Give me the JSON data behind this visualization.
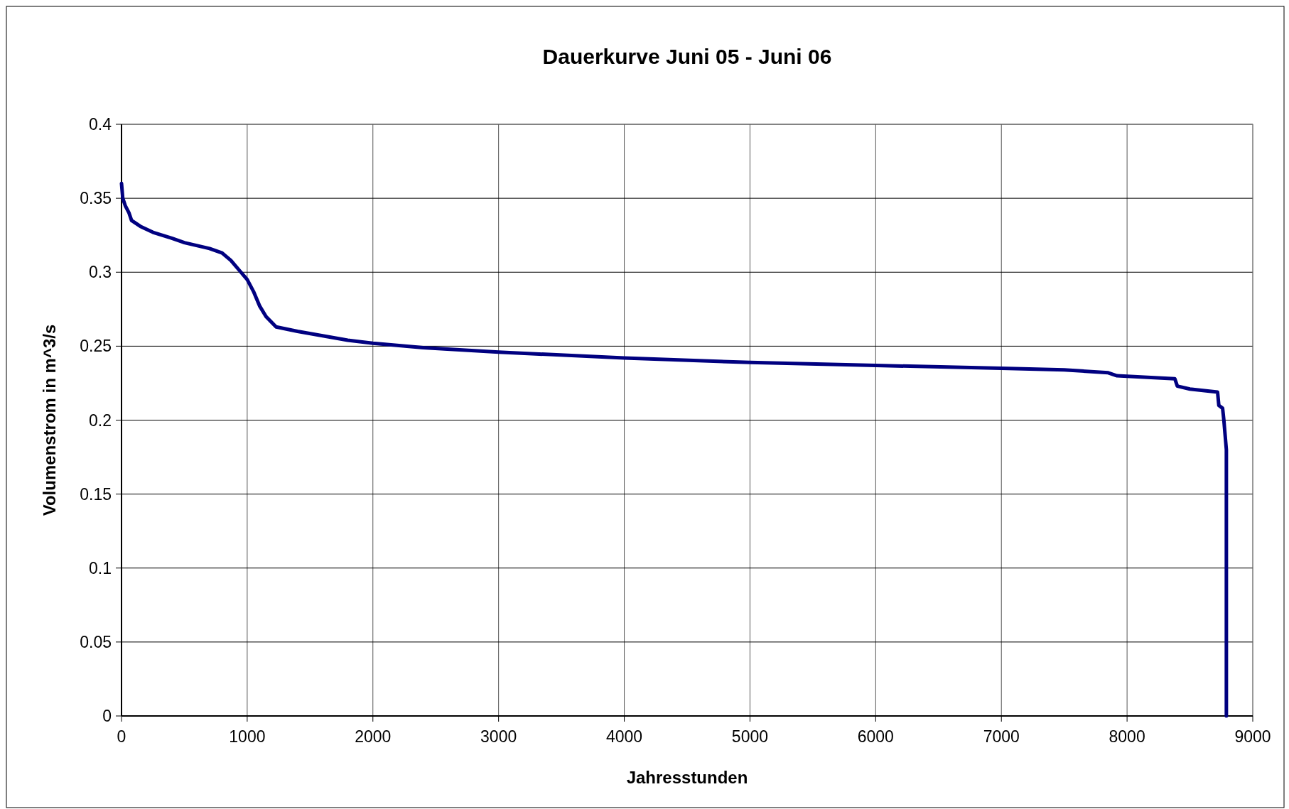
{
  "chart_data": {
    "type": "line",
    "title": "Dauerkurve Juni 05 - Juni 06",
    "xlabel": "Jahresstunden",
    "ylabel": "Volumenstrom in m^3/s",
    "xlim": [
      0,
      9000
    ],
    "xticks": [
      0,
      1000,
      2000,
      3000,
      4000,
      5000,
      6000,
      7000,
      8000,
      9000
    ],
    "ylim": [
      0,
      0.4
    ],
    "yticks": [
      0,
      0.05,
      0.1,
      0.15,
      0.2,
      0.25,
      0.3,
      0.35,
      0.4
    ],
    "grid": true,
    "marker": "none",
    "line_style": "solid",
    "series": [
      {
        "color": "#000080",
        "x": [
          0,
          10,
          30,
          60,
          80,
          150,
          250,
          400,
          500,
          700,
          800,
          870,
          950,
          1000,
          1050,
          1100,
          1150,
          1230,
          1400,
          1600,
          1800,
          2000,
          2400,
          3000,
          4000,
          5000,
          6000,
          7000,
          7500,
          7850,
          7920,
          8380,
          8400,
          8500,
          8720,
          8730,
          8760,
          8770,
          8790,
          8790
        ],
        "values": [
          0.36,
          0.35,
          0.345,
          0.34,
          0.335,
          0.331,
          0.327,
          0.323,
          0.32,
          0.316,
          0.313,
          0.308,
          0.3,
          0.295,
          0.287,
          0.277,
          0.27,
          0.263,
          0.26,
          0.257,
          0.254,
          0.252,
          0.249,
          0.246,
          0.242,
          0.239,
          0.237,
          0.235,
          0.234,
          0.232,
          0.23,
          0.228,
          0.223,
          0.221,
          0.219,
          0.21,
          0.208,
          0.2,
          0.18,
          0
        ]
      }
    ]
  }
}
